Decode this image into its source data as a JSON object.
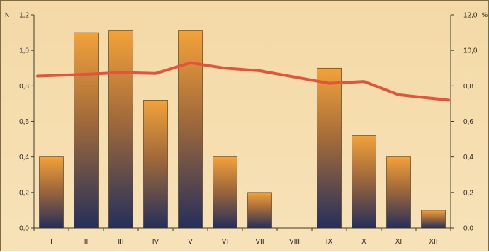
{
  "chart_data": {
    "type": "bar",
    "title": "",
    "xlabel": "",
    "ylabel": "",
    "left_axis": {
      "unit": "N",
      "ylim": [
        0,
        1.2
      ],
      "ticks": [
        "0,0",
        "0,2",
        "0,4",
        "0,6",
        "0,8",
        "1,0",
        "1,2"
      ]
    },
    "right_axis": {
      "unit": "%",
      "ylim": [
        0,
        12
      ],
      "ticks": [
        "0,0",
        "0,2",
        "0,4",
        "0,6",
        "0,8",
        "10,0",
        "12,0"
      ]
    },
    "categories": [
      "I",
      "II",
      "III",
      "IV",
      "V",
      "VI",
      "VII",
      "VIII",
      "IX",
      "X",
      "XI",
      "XII"
    ],
    "series": [
      {
        "type": "bar",
        "axis": "left",
        "values": [
          0.4,
          1.1,
          1.11,
          0.72,
          1.11,
          0.4,
          0.2,
          0,
          0.9,
          0.52,
          0.4,
          0.1
        ]
      },
      {
        "type": "line",
        "axis": "right",
        "values": [
          8.55,
          8.65,
          8.75,
          8.7,
          9.3,
          9.0,
          8.85,
          8.5,
          8.15,
          8.25,
          7.5,
          7.2
        ]
      }
    ],
    "grid": false,
    "legend": "none",
    "colors": {
      "bar_top": "#f3a23a",
      "bar_mid": "#a26a3a",
      "bar_bottom": "#252f5a",
      "line": "#e2553c",
      "background": "#f5ddae",
      "axis": "#3a3a3a"
    }
  }
}
